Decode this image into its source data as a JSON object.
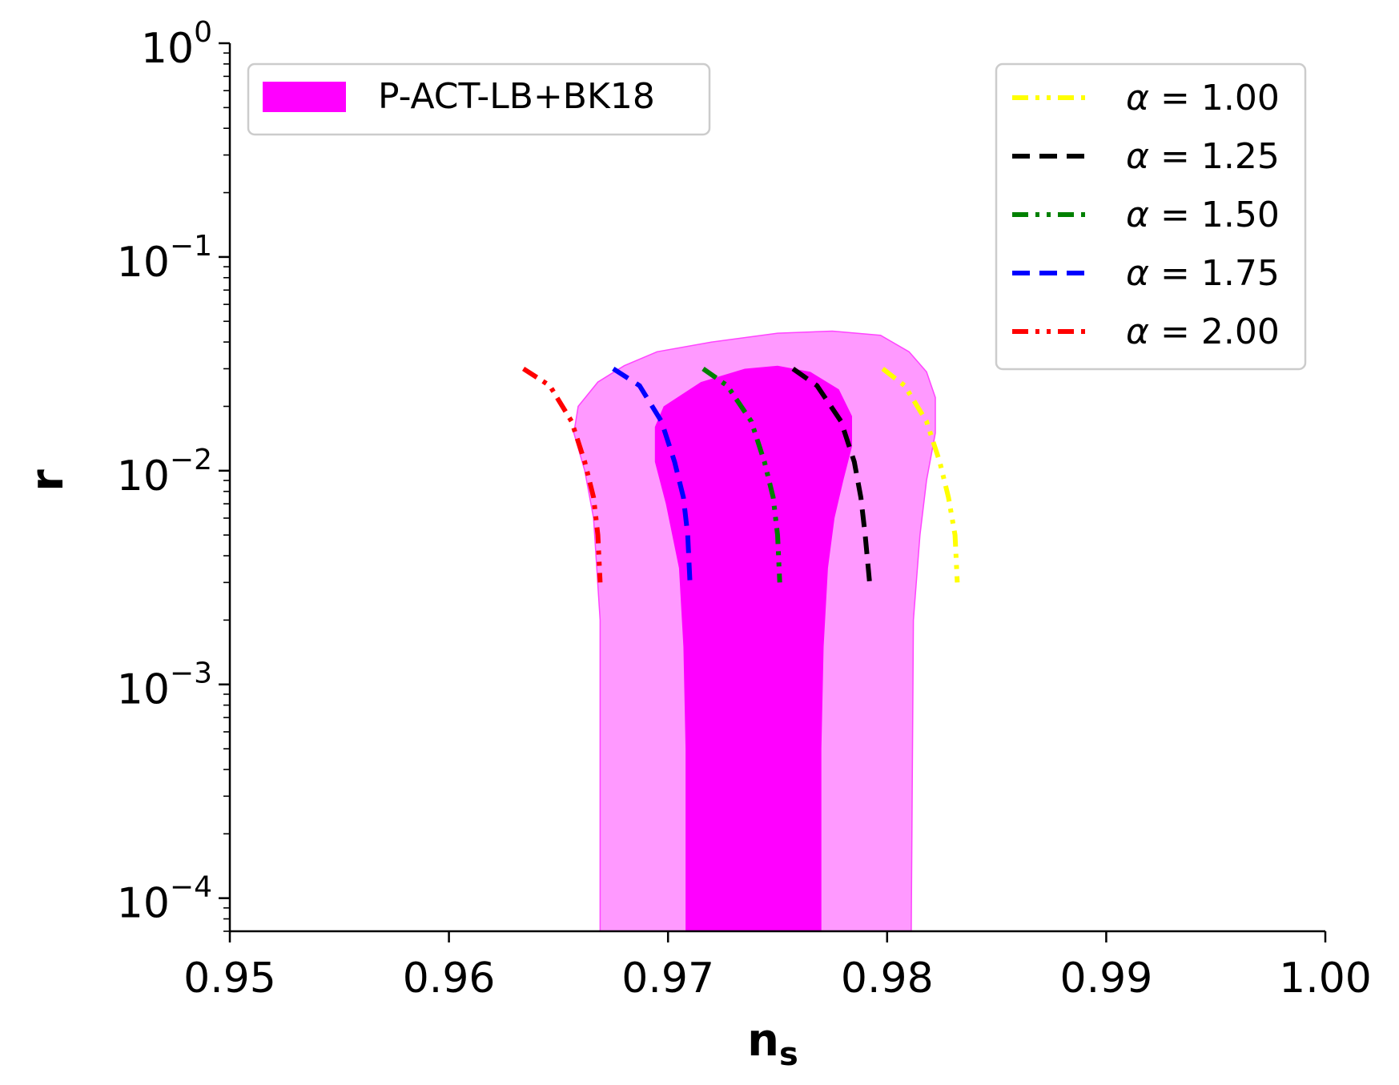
{
  "chart_data": {
    "type": "line",
    "title": "",
    "xlabel": "n",
    "xlabel_sub": "s",
    "ylabel": "r",
    "xlim": [
      0.95,
      1.0
    ],
    "ylim": [
      7e-05,
      1.0
    ],
    "yscale": "log",
    "grid": false,
    "x_ticks": [
      {
        "value": 0.95,
        "label": "0.95"
      },
      {
        "value": 0.96,
        "label": "0.96"
      },
      {
        "value": 0.97,
        "label": "0.97"
      },
      {
        "value": 0.98,
        "label": "0.98"
      },
      {
        "value": 0.99,
        "label": "0.99"
      },
      {
        "value": 1.0,
        "label": "1.00"
      }
    ],
    "y_ticks": [
      {
        "value": 1,
        "base": "10",
        "exp": "0"
      },
      {
        "value": 0.1,
        "base": "10",
        "exp": "−1"
      },
      {
        "value": 0.01,
        "base": "10",
        "exp": "−2"
      },
      {
        "value": 0.001,
        "base": "10",
        "exp": "−3"
      },
      {
        "value": 0.0001,
        "base": "10",
        "exp": "−4"
      }
    ],
    "contours": {
      "name": "P-ACT-LB+BK18",
      "outer": {
        "color": "#ff99ff",
        "points": [
          [
            0.9669,
            7e-05
          ],
          [
            0.9669,
            0.002
          ],
          [
            0.9666,
            0.006
          ],
          [
            0.9662,
            0.01
          ],
          [
            0.9657,
            0.015
          ],
          [
            0.9659,
            0.02
          ],
          [
            0.9668,
            0.026
          ],
          [
            0.968,
            0.031
          ],
          [
            0.9695,
            0.036
          ],
          [
            0.972,
            0.04
          ],
          [
            0.975,
            0.044
          ],
          [
            0.9775,
            0.045
          ],
          [
            0.9797,
            0.043
          ],
          [
            0.981,
            0.036
          ],
          [
            0.9818,
            0.029
          ],
          [
            0.9822,
            0.022
          ],
          [
            0.9822,
            0.015
          ],
          [
            0.9818,
            0.009
          ],
          [
            0.9815,
            0.005
          ],
          [
            0.9812,
            0.002
          ],
          [
            0.9811,
            7e-05
          ]
        ]
      },
      "inner": {
        "color": "#ff00ff",
        "points": [
          [
            0.9708,
            7e-05
          ],
          [
            0.9708,
            0.0005
          ],
          [
            0.9707,
            0.0015
          ],
          [
            0.9705,
            0.0035
          ],
          [
            0.9699,
            0.007
          ],
          [
            0.9694,
            0.011
          ],
          [
            0.9694,
            0.016
          ],
          [
            0.9698,
            0.02
          ],
          [
            0.9715,
            0.026
          ],
          [
            0.9735,
            0.03
          ],
          [
            0.975,
            0.031
          ],
          [
            0.9765,
            0.029
          ],
          [
            0.9778,
            0.024
          ],
          [
            0.9784,
            0.018
          ],
          [
            0.9784,
            0.013
          ],
          [
            0.978,
            0.009
          ],
          [
            0.9776,
            0.006
          ],
          [
            0.9773,
            0.0035
          ],
          [
            0.9771,
            0.0015
          ],
          [
            0.977,
            0.0005
          ],
          [
            0.977,
            7e-05
          ]
        ]
      }
    },
    "legend_fill": {
      "label": "P-ACT-LB+BK18",
      "color": "#ff00ff",
      "position": "top-left"
    },
    "legend_lines_position": "top-right",
    "series": [
      {
        "name": "α = 1.00",
        "alpha": "1.00",
        "color": "#ffff00",
        "dash": "dashdotdot",
        "points": [
          [
            0.9798,
            0.03
          ],
          [
            0.9808,
            0.025
          ],
          [
            0.9818,
            0.017
          ],
          [
            0.9824,
            0.011
          ],
          [
            0.9828,
            0.0075
          ],
          [
            0.9831,
            0.005
          ],
          [
            0.9832,
            0.003
          ]
        ]
      },
      {
        "name": "α = 1.25",
        "alpha": "1.25",
        "color": "#000000",
        "dash": "dashed",
        "points": [
          [
            0.9757,
            0.03
          ],
          [
            0.9768,
            0.025
          ],
          [
            0.9779,
            0.017
          ],
          [
            0.9785,
            0.011
          ],
          [
            0.9788,
            0.0075
          ],
          [
            0.979,
            0.005
          ],
          [
            0.9792,
            0.003
          ]
        ]
      },
      {
        "name": "α = 1.50",
        "alpha": "1.50",
        "color": "#008000",
        "dash": "dashdotdot",
        "points": [
          [
            0.9716,
            0.03
          ],
          [
            0.9727,
            0.025
          ],
          [
            0.9738,
            0.017
          ],
          [
            0.9744,
            0.011
          ],
          [
            0.9748,
            0.0075
          ],
          [
            0.975,
            0.005
          ],
          [
            0.9751,
            0.003
          ]
        ]
      },
      {
        "name": "α = 1.75",
        "alpha": "1.75",
        "color": "#0000ff",
        "dash": "dashed",
        "points": [
          [
            0.9675,
            0.03
          ],
          [
            0.9687,
            0.025
          ],
          [
            0.9697,
            0.017
          ],
          [
            0.9703,
            0.011
          ],
          [
            0.9707,
            0.0075
          ],
          [
            0.9709,
            0.005
          ],
          [
            0.971,
            0.003
          ]
        ]
      },
      {
        "name": "α = 2.00",
        "alpha": "2.00",
        "color": "#ff0000",
        "dash": "dashdotdot",
        "points": [
          [
            0.9634,
            0.03
          ],
          [
            0.9646,
            0.025
          ],
          [
            0.9656,
            0.017
          ],
          [
            0.9662,
            0.011
          ],
          [
            0.9666,
            0.0075
          ],
          [
            0.9668,
            0.005
          ],
          [
            0.9669,
            0.003
          ]
        ]
      }
    ]
  }
}
